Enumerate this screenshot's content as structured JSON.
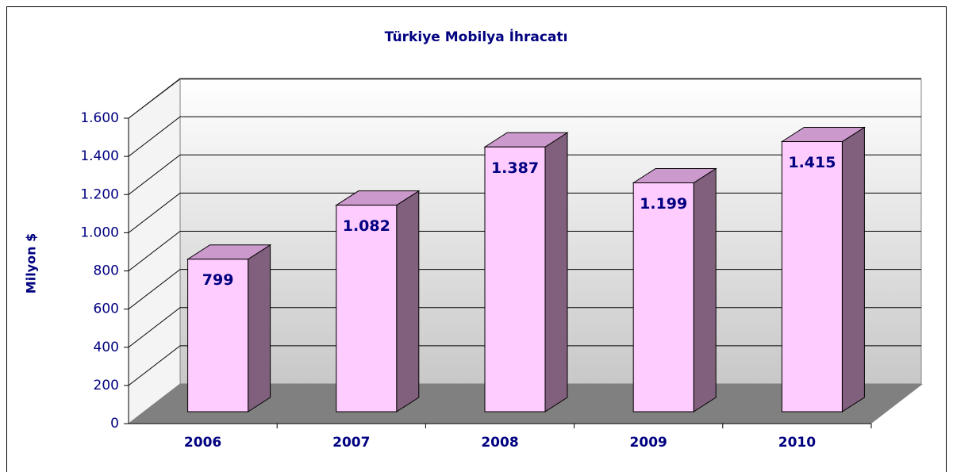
{
  "chart_data": {
    "type": "bar3d",
    "title": "Türkiye Mobilya İhracatı",
    "y_label": "Milyon $",
    "categories": [
      "2006",
      "2007",
      "2008",
      "2009",
      "2010"
    ],
    "values": [
      799,
      1082,
      1387,
      1199,
      1415
    ],
    "value_labels": [
      "799",
      "1.082",
      "1.387",
      "1.199",
      "1.415"
    ],
    "color": "#ffccff",
    "ylim": [
      0,
      1600
    ],
    "yticks": [
      0,
      200,
      400,
      600,
      800,
      {
        "value": 1000,
        "label": "1.000"
      },
      {
        "value": 1200,
        "label": "1.200"
      },
      {
        "value": 1400,
        "label": "1.400"
      },
      {
        "value": 1600,
        "label": "1.600"
      }
    ],
    "grid": true
  }
}
